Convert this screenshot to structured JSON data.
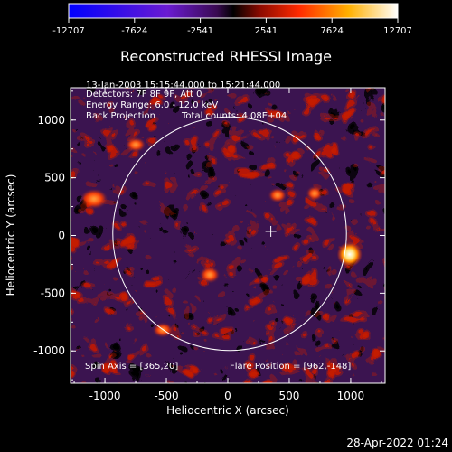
{
  "colorbar": {
    "ticks": [
      "-12707",
      "-7624",
      "-2541",
      "2541",
      "7624",
      "12707"
    ],
    "gradient_stops": [
      "#0000ff",
      "#6a1bd1",
      "#3a0a52",
      "#000000",
      "#8a0a00",
      "#ff2a00",
      "#ffb000",
      "#ffffff"
    ]
  },
  "plot": {
    "title": "Reconstructed RHESSI Image",
    "xlabel": "Heliocentric X (arcsec)",
    "ylabel": "Heliocentric Y (arcsec)",
    "x_ticks": [
      "-1000",
      "-500",
      "0",
      "500",
      "1000"
    ],
    "y_ticks": [
      "1000",
      "500",
      "0",
      "-500",
      "-1000"
    ],
    "xlim": [
      -1280,
      1280
    ],
    "ylim": [
      -1280,
      1280
    ],
    "info_lines": [
      "13-Jan-2003 15:15:44.000 to 15:21:44.000",
      "Detectors: 7F 8F 9F, Att 0",
      "Energy Range: 6.0 - 12.0 keV"
    ],
    "method": "Back Projection",
    "total_counts": "Total counts: 4.08E+04",
    "spin_axis": "Spin Axis = [365,20]",
    "flare_position": "Flare Position = [962,-148]",
    "solar_disk_radius_arcsec": 970,
    "spin_axis_xy": [
      365,
      20
    ],
    "flare_xy": [
      962,
      -148
    ]
  },
  "footer": {
    "timestamp": "28-Apr-2022 01:24"
  }
}
